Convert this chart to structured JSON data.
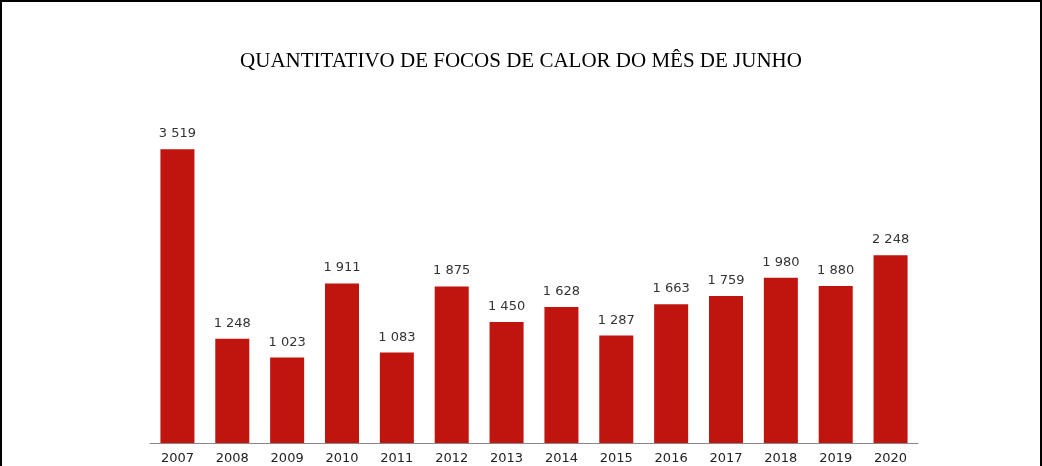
{
  "chart_data": {
    "type": "bar",
    "title": "QUANTITATIVO DE FOCOS DE CALOR DO MÊS DE JUNHO",
    "categories": [
      "2007",
      "2008",
      "2009",
      "2010",
      "2011",
      "2012",
      "2013",
      "2014",
      "2015",
      "2016",
      "2017",
      "2018",
      "2019",
      "2020"
    ],
    "values": [
      3519,
      1248,
      1023,
      1911,
      1083,
      1875,
      1450,
      1628,
      1287,
      1663,
      1759,
      1980,
      1880,
      2248
    ],
    "value_labels": [
      "3 519",
      "1 248",
      "1 023",
      "1 911",
      "1 083",
      "1 875",
      "1 450",
      "1 628",
      "1 287",
      "1 663",
      "1 759",
      "1 980",
      "1 880",
      "2 248"
    ],
    "color": "#c0140e"
  }
}
